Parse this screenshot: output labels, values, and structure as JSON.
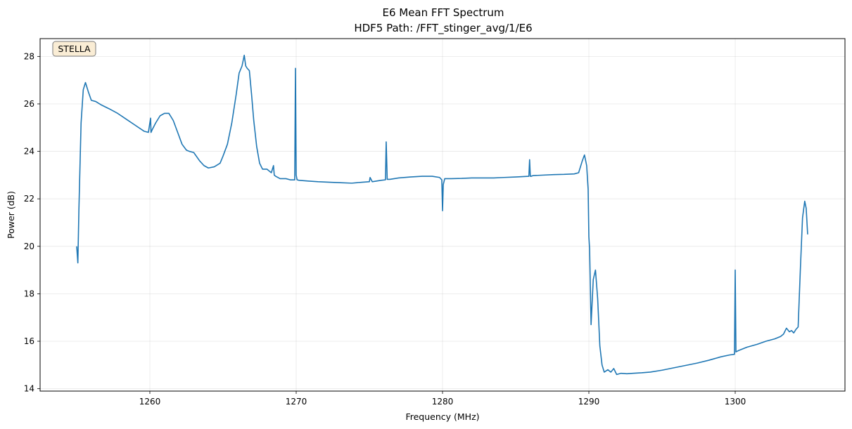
{
  "chart_data": {
    "type": "line",
    "title": "E6 Mean FFT Spectrum",
    "subtitle": "HDF5 Path: /FFT_stinger_avg/1/E6",
    "xlabel": "Frequency (MHz)",
    "ylabel": "Power (dB)",
    "xlim": [
      1252.5,
      1307.5
    ],
    "ylim": [
      13.9,
      28.75
    ],
    "xticks": [
      1260,
      1270,
      1280,
      1290,
      1300
    ],
    "yticks": [
      14,
      16,
      18,
      20,
      22,
      24,
      26,
      28
    ],
    "grid": true,
    "badge": "STELLA",
    "line_color": "#1f77b4",
    "series": [
      {
        "x": [
          1255.0,
          1255.08,
          1255.15,
          1255.3,
          1255.45,
          1255.6,
          1255.8,
          1256.0,
          1256.3,
          1256.7,
          1257.2,
          1257.8,
          1258.4,
          1259.0,
          1259.6,
          1259.9,
          1260.05,
          1260.08,
          1260.15,
          1260.4,
          1260.7,
          1261.0,
          1261.3,
          1261.6,
          1261.9,
          1262.2,
          1262.5,
          1262.7,
          1263.0,
          1263.4,
          1263.7,
          1264.0,
          1264.4,
          1264.8,
          1265.0,
          1265.3,
          1265.6,
          1265.9,
          1266.1,
          1266.3,
          1266.45,
          1266.55,
          1266.65,
          1266.8,
          1266.95,
          1267.1,
          1267.3,
          1267.5,
          1267.7,
          1268.0,
          1268.3,
          1268.45,
          1268.5,
          1268.6,
          1268.9,
          1269.3,
          1269.6,
          1269.9,
          1269.95,
          1270.0,
          1270.06,
          1270.2,
          1270.8,
          1271.5,
          1272.3,
          1273.0,
          1273.8,
          1274.5,
          1275.0,
          1275.05,
          1275.2,
          1275.8,
          1276.1,
          1276.15,
          1276.22,
          1276.4,
          1277.0,
          1277.8,
          1278.6,
          1279.3,
          1279.8,
          1279.95,
          1280.0,
          1280.05,
          1280.15,
          1280.6,
          1281.3,
          1282.0,
          1282.8,
          1283.5,
          1284.2,
          1285.0,
          1285.9,
          1285.95,
          1286.0,
          1286.05,
          1286.2,
          1286.9,
          1287.6,
          1288.3,
          1289.0,
          1289.3,
          1289.55,
          1289.7,
          1289.85,
          1289.95,
          1290.0,
          1290.05,
          1290.15,
          1290.3,
          1290.45,
          1290.6,
          1290.75,
          1290.9,
          1291.05,
          1291.3,
          1291.5,
          1291.7,
          1291.9,
          1292.2,
          1292.6,
          1293.0,
          1293.6,
          1294.2,
          1295.0,
          1295.8,
          1296.6,
          1297.4,
          1298.2,
          1299.0,
          1299.6,
          1299.95,
          1300.0,
          1300.05,
          1300.2,
          1300.8,
          1301.5,
          1302.1,
          1302.7,
          1303.1,
          1303.3,
          1303.5,
          1303.7,
          1303.85,
          1304.0,
          1304.15,
          1304.3,
          1304.45,
          1304.6,
          1304.75,
          1304.85,
          1304.95
        ],
        "y": [
          20.0,
          19.3,
          21.5,
          25.2,
          26.6,
          26.9,
          26.5,
          26.15,
          26.1,
          25.95,
          25.8,
          25.6,
          25.35,
          25.1,
          24.85,
          24.8,
          25.4,
          24.8,
          24.9,
          25.2,
          25.5,
          25.6,
          25.6,
          25.3,
          24.8,
          24.3,
          24.05,
          24.0,
          23.95,
          23.6,
          23.4,
          23.3,
          23.35,
          23.5,
          23.8,
          24.3,
          25.2,
          26.4,
          27.3,
          27.6,
          28.05,
          27.6,
          27.5,
          27.4,
          26.4,
          25.3,
          24.2,
          23.5,
          23.25,
          23.25,
          23.1,
          23.4,
          23.0,
          22.95,
          22.85,
          22.85,
          22.8,
          22.8,
          27.5,
          23.0,
          22.8,
          22.78,
          22.75,
          22.72,
          22.7,
          22.68,
          22.66,
          22.7,
          22.72,
          22.9,
          22.72,
          22.78,
          22.8,
          24.4,
          22.82,
          22.82,
          22.88,
          22.92,
          22.95,
          22.95,
          22.9,
          22.8,
          21.5,
          22.6,
          22.85,
          22.85,
          22.86,
          22.88,
          22.88,
          22.88,
          22.9,
          22.92,
          22.95,
          23.65,
          22.95,
          22.95,
          22.98,
          23.0,
          23.02,
          23.03,
          23.05,
          23.1,
          23.6,
          23.85,
          23.4,
          22.4,
          20.4,
          19.9,
          16.7,
          18.6,
          19.0,
          17.8,
          15.8,
          15.0,
          14.7,
          14.8,
          14.7,
          14.85,
          14.6,
          14.65,
          14.63,
          14.65,
          14.67,
          14.7,
          14.78,
          14.88,
          14.98,
          15.08,
          15.2,
          15.34,
          15.42,
          15.45,
          19.0,
          15.55,
          15.6,
          15.75,
          15.87,
          16.0,
          16.1,
          16.2,
          16.3,
          16.55,
          16.4,
          16.45,
          16.35,
          16.5,
          16.6,
          19.0,
          21.2,
          21.9,
          21.6,
          20.5
        ]
      }
    ]
  }
}
